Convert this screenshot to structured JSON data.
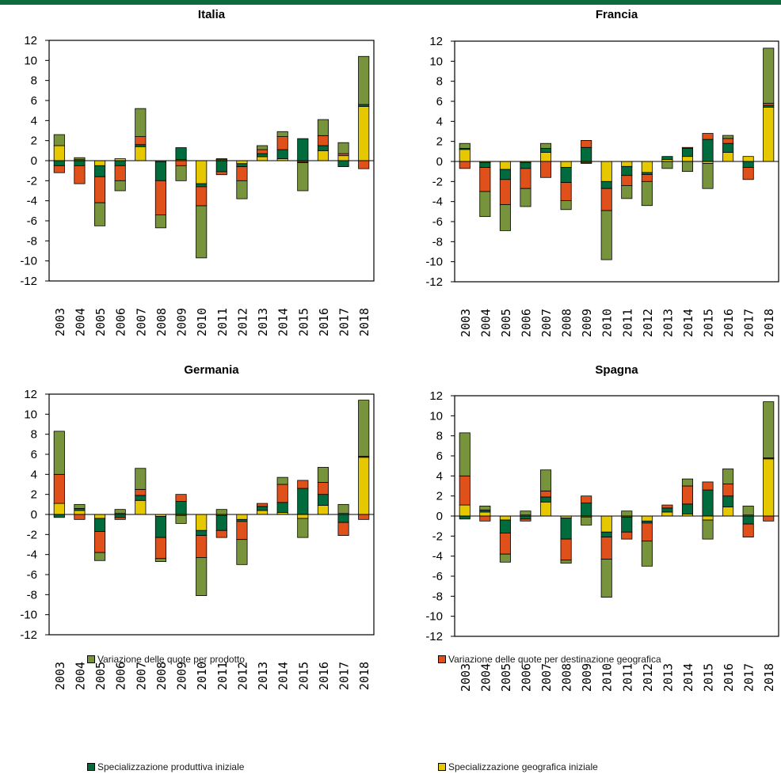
{
  "colors": {
    "prodotto": "#77933c",
    "destinazione": "#e0501b",
    "produttiva": "#006b3c",
    "geografica": "#e6c800",
    "topbar": "#0e6b3b"
  },
  "legend": {
    "prodotto": "Variazione delle quote per prodotto",
    "destinazione": "Variazione delle quote per destinazione geografica",
    "produttiva": "Specializzazione produttiva iniziale",
    "geografica": "Specializzazione geografica iniziale"
  },
  "chart_data": [
    {
      "type": "bar",
      "stacked": true,
      "title": "Italia",
      "ylim": [
        -12,
        12
      ],
      "yticks": [
        12,
        10,
        8,
        6,
        4,
        2,
        0,
        -2,
        -4,
        -6,
        -8,
        -10,
        -12
      ],
      "categories": [
        "2003",
        "2004",
        "2005",
        "2006",
        "2007",
        "2008",
        "2009",
        "2010",
        "2011",
        "2012",
        "2013",
        "2014",
        "2015",
        "2016",
        "2017",
        "2018"
      ],
      "series": [
        {
          "key": "geografica",
          "values": [
            1.5,
            0.1,
            -0.5,
            0.2,
            1.4,
            -0.1,
            0.1,
            -2.3,
            0.1,
            -0.3,
            0.4,
            0.2,
            -0.1,
            1.0,
            0.5,
            5.4
          ]
        },
        {
          "key": "produttiva",
          "values": [
            -0.5,
            -0.5,
            -1.1,
            -0.5,
            0.2,
            -1.9,
            1.2,
            -0.3,
            -1.1,
            -0.3,
            0.3,
            0.9,
            2.2,
            0.5,
            -0.6,
            0.2
          ]
        },
        {
          "key": "destinazione",
          "values": [
            -0.7,
            -1.8,
            -2.6,
            -1.5,
            0.8,
            -3.4,
            -0.5,
            -1.9,
            -0.3,
            -1.4,
            0.4,
            1.3,
            -0.1,
            1.0,
            0.2,
            -0.8
          ]
        },
        {
          "key": "prodotto",
          "values": [
            1.1,
            0.2,
            -2.3,
            -1.0,
            2.8,
            -1.3,
            -1.5,
            -5.2,
            0.1,
            -1.8,
            0.4,
            0.5,
            -2.8,
            1.6,
            1.1,
            4.8
          ]
        }
      ]
    },
    {
      "type": "bar",
      "stacked": true,
      "title": "Francia",
      "ylim": [
        -12,
        12
      ],
      "yticks": [
        12,
        10,
        8,
        6,
        4,
        2,
        0,
        -2,
        -4,
        -6,
        -8,
        -10,
        -12
      ],
      "categories": [
        "2003",
        "2004",
        "2005",
        "2006",
        "2007",
        "2008",
        "2009",
        "2010",
        "2011",
        "2012",
        "2013",
        "2014",
        "2015",
        "2016",
        "2017",
        "2018"
      ],
      "series": [
        {
          "key": "geografica",
          "values": [
            1.2,
            -0.1,
            -0.8,
            -0.1,
            0.9,
            -0.6,
            -0.1,
            -2.0,
            -0.5,
            -1.1,
            0.2,
            0.5,
            -0.2,
            0.9,
            0.5,
            5.4
          ]
        },
        {
          "key": "produttiva",
          "values": [
            0.1,
            -0.5,
            -1.0,
            -0.6,
            0.4,
            -1.5,
            1.4,
            -0.7,
            -0.9,
            -0.2,
            0.3,
            0.8,
            2.2,
            0.9,
            -0.6,
            0.2
          ]
        },
        {
          "key": "destinazione",
          "values": [
            -0.7,
            -2.4,
            -2.5,
            -2.0,
            -1.6,
            -1.8,
            0.7,
            -2.2,
            -1.0,
            -0.7,
            0.0,
            0.1,
            0.6,
            0.5,
            -1.2,
            0.2
          ]
        },
        {
          "key": "prodotto",
          "values": [
            0.5,
            -2.5,
            -2.6,
            -1.8,
            0.5,
            -0.9,
            -0.1,
            -4.9,
            -1.3,
            -2.4,
            -0.7,
            -1.0,
            -2.5,
            0.3,
            0.0,
            5.5
          ]
        }
      ]
    },
    {
      "type": "bar",
      "stacked": true,
      "title": "Germania",
      "ylim": [
        -12,
        12
      ],
      "yticks": [
        12,
        10,
        8,
        6,
        4,
        2,
        0,
        -2,
        -4,
        -6,
        -8,
        -10,
        -12
      ],
      "categories": [
        "2003",
        "2004",
        "2005",
        "2006",
        "2007",
        "2008",
        "2009",
        "2010",
        "2011",
        "2012",
        "2013",
        "2014",
        "2015",
        "2016",
        "2017",
        "2018"
      ],
      "series": [
        {
          "key": "geografica",
          "values": [
            1.1,
            0.4,
            -0.4,
            0.1,
            1.4,
            -0.2,
            -0.1,
            -1.6,
            -0.1,
            -0.5,
            0.4,
            0.2,
            -0.4,
            0.9,
            0.1,
            5.7
          ]
        },
        {
          "key": "produttiva",
          "values": [
            -0.3,
            0.2,
            -1.3,
            -0.3,
            0.5,
            -2.1,
            1.3,
            -0.5,
            -1.5,
            -0.2,
            0.4,
            1.0,
            2.6,
            1.1,
            -0.8,
            0.1
          ]
        },
        {
          "key": "destinazione",
          "values": [
            2.9,
            -0.5,
            -2.1,
            -0.2,
            0.6,
            -2.1,
            0.7,
            -2.2,
            -0.7,
            -1.8,
            0.3,
            1.8,
            0.8,
            1.2,
            -1.3,
            -0.5
          ]
        },
        {
          "key": "prodotto",
          "values": [
            4.3,
            0.4,
            -0.8,
            0.4,
            2.1,
            -0.3,
            -0.8,
            -3.8,
            0.5,
            -2.5,
            0.0,
            0.7,
            -1.9,
            1.5,
            0.9,
            5.6
          ]
        }
      ]
    },
    {
      "type": "bar",
      "stacked": true,
      "title": "Spagna",
      "ylim": [
        -12,
        12
      ],
      "yticks": [
        12,
        10,
        8,
        6,
        4,
        2,
        0,
        -2,
        -4,
        -6,
        -8,
        -10,
        -12
      ],
      "categories": [
        "2003",
        "2004",
        "2005",
        "2006",
        "2007",
        "2008",
        "2009",
        "2010",
        "2011",
        "2012",
        "2013",
        "2014",
        "2015",
        "2016",
        "2017",
        "2018"
      ],
      "series": [
        {
          "key": "geografica",
          "values": [
            1.1,
            0.4,
            -0.4,
            0.1,
            1.4,
            -0.2,
            -0.1,
            -1.6,
            -0.1,
            -0.5,
            0.4,
            0.2,
            -0.4,
            0.9,
            0.1,
            5.7
          ]
        },
        {
          "key": "produttiva",
          "values": [
            -0.3,
            0.2,
            -1.3,
            -0.3,
            0.5,
            -2.1,
            1.3,
            -0.5,
            -1.5,
            -0.2,
            0.4,
            1.0,
            2.6,
            1.1,
            -0.8,
            0.1
          ]
        },
        {
          "key": "destinazione",
          "values": [
            2.9,
            -0.5,
            -2.1,
            -0.2,
            0.6,
            -2.1,
            0.7,
            -2.2,
            -0.7,
            -1.8,
            0.3,
            1.8,
            0.8,
            1.2,
            -1.3,
            -0.5
          ]
        },
        {
          "key": "prodotto",
          "values": [
            4.3,
            0.4,
            -0.8,
            0.4,
            2.1,
            -0.3,
            -0.8,
            -3.8,
            0.5,
            -2.5,
            0.0,
            0.7,
            -1.9,
            1.5,
            0.9,
            5.6
          ]
        }
      ]
    }
  ]
}
